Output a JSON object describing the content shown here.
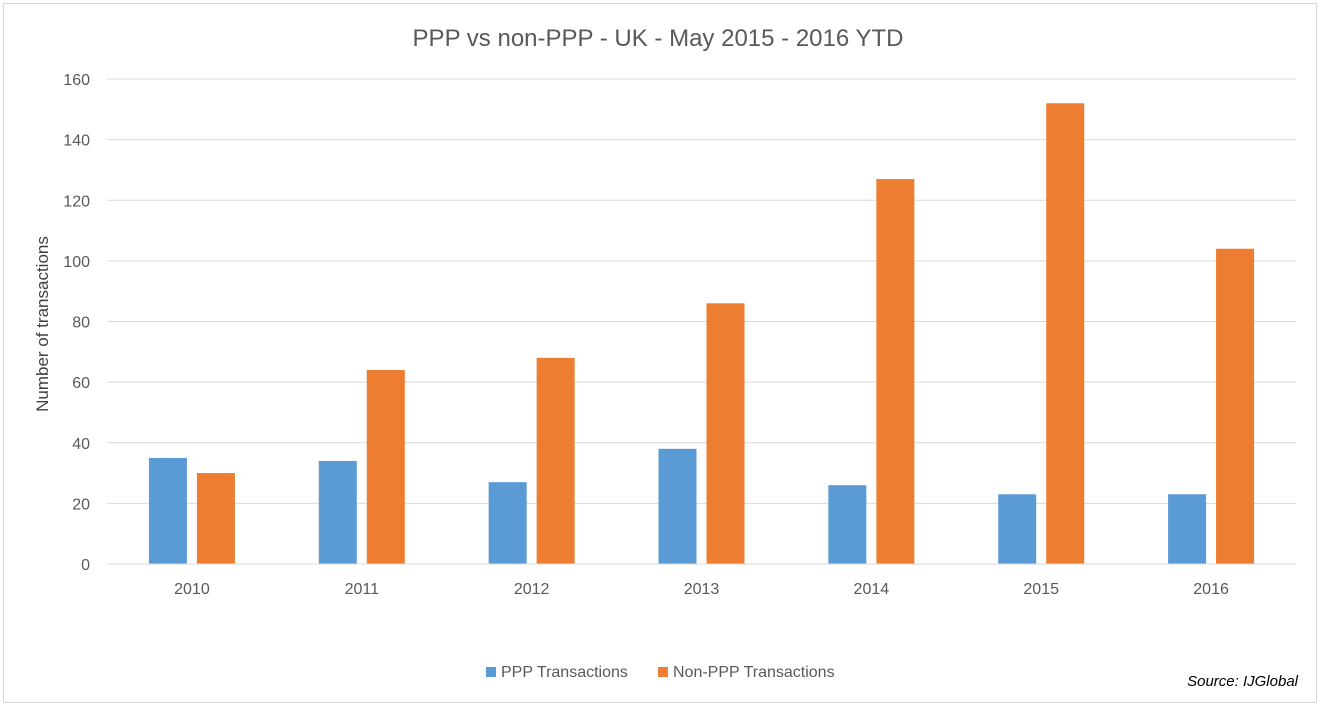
{
  "chart_data": {
    "type": "bar",
    "title": "PPP vs non-PPP - UK - May 2015 - 2016 YTD",
    "xlabel": "",
    "ylabel": "Number of transactions",
    "categories": [
      "2010",
      "2011",
      "2012",
      "2013",
      "2014",
      "2015",
      "2016"
    ],
    "series": [
      {
        "name": "PPP Transactions",
        "color": "#5b9bd5",
        "values": [
          35,
          34,
          27,
          38,
          26,
          23,
          23
        ]
      },
      {
        "name": "Non-PPP Transactions",
        "color": "#ed7d31",
        "values": [
          30,
          64,
          68,
          86,
          127,
          152,
          104
        ]
      }
    ],
    "ylim": [
      0,
      160
    ],
    "yticks": [
      0,
      20,
      40,
      60,
      80,
      100,
      120,
      140,
      160
    ],
    "grid": true,
    "legend_position": "bottom"
  },
  "source": "Source: IJGlobal"
}
